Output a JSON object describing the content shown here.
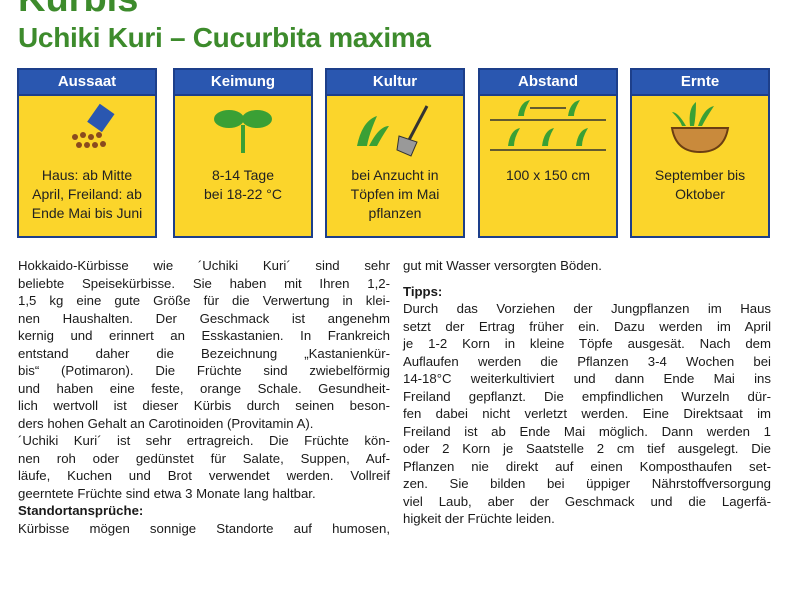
{
  "header": {
    "title": "Kürbis",
    "subtitle": "Uchiki Kuri – Cucurbita maxima"
  },
  "panels": [
    {
      "label": "Aussaat",
      "lines": [
        "Haus: ab Mitte",
        "April, Freiland: ab",
        "Ende Mai bis Juni"
      ]
    },
    {
      "label": "Keimung",
      "lines": [
        "8-14 Tage",
        "bei 18-22 °C"
      ]
    },
    {
      "label": "Kultur",
      "lines": [
        "bei Anzucht in",
        "Töpfen im Mai",
        "pflanzen"
      ]
    },
    {
      "label": "Abstand",
      "lines": [
        "100 x 150 cm"
      ]
    },
    {
      "label": "Ernte",
      "lines": [
        "September bis",
        "Oktober"
      ]
    }
  ],
  "left_column": {
    "paragraphs": [
      [
        "Hokkaido-Kürbisse wie ´Uchiki Kuri´ sind sehr",
        "beliebte Speisekürbisse. Sie haben mit Ihren 1,2-",
        "1,5 kg eine gute Größe für die Verwertung in klei-",
        "nen Haushalten. Der Geschmack ist angenehm",
        "kernig und erinnert an Esskastanien. In Frankreich",
        "entstand daher die Bezeichnung „Kastanienkür-",
        "bis“ (Potimaron). Die Früchte sind zwiebelförmig",
        "und haben eine feste, orange Schale. Gesundheit-",
        "lich wertvoll ist dieser Kürbis durch seinen beson-",
        "ders hohen Gehalt an Carotinoiden (Provitamin A)."
      ],
      [
        "´Uchiki Kuri´ ist sehr ertragreich. Die Früchte kön-",
        "nen roh oder gedünstet für Salate, Suppen, Auf-",
        "läufe, Kuchen und Brot verwendet werden. Vollreif",
        "geerntete Früchte sind etwa 3 Monate lang haltbar."
      ]
    ],
    "heading": "Standortansprüche:",
    "lines": [
      "Kürbisse mögen sonnige Standorte auf humosen,"
    ]
  },
  "right_column": {
    "lines_top": [
      "gut mit Wasser versorgten Böden."
    ],
    "heading": "Tipps:",
    "lines": [
      "Durch das Vorziehen der Jungpflanzen im Haus",
      "setzt der Ertrag früher ein. Dazu werden im April",
      "je 1-2 Korn in kleine Töpfe ausgesät. Nach dem",
      "Auflaufen werden die Pflanzen 3-4 Wochen bei",
      "14-18°C weiterkultiviert und dann Ende Mai ins",
      "Freiland gepflanzt. Die empfindlichen Wurzeln dür-",
      "fen dabei nicht verletzt werden. Eine Direktsaat im",
      "Freiland ist ab Ende Mai möglich. Dann werden 1",
      "oder 2 Korn je Saatstelle 2 cm tief ausgelegt. Die",
      "Pflanzen nie direkt auf einen Komposthaufen set-",
      "zen. Sie bilden bei üppiger Nährstoffversorgung",
      "viel Laub, aber der Geschmack und die Lagerfä-",
      "higkeit der Früchte leiden."
    ]
  }
}
